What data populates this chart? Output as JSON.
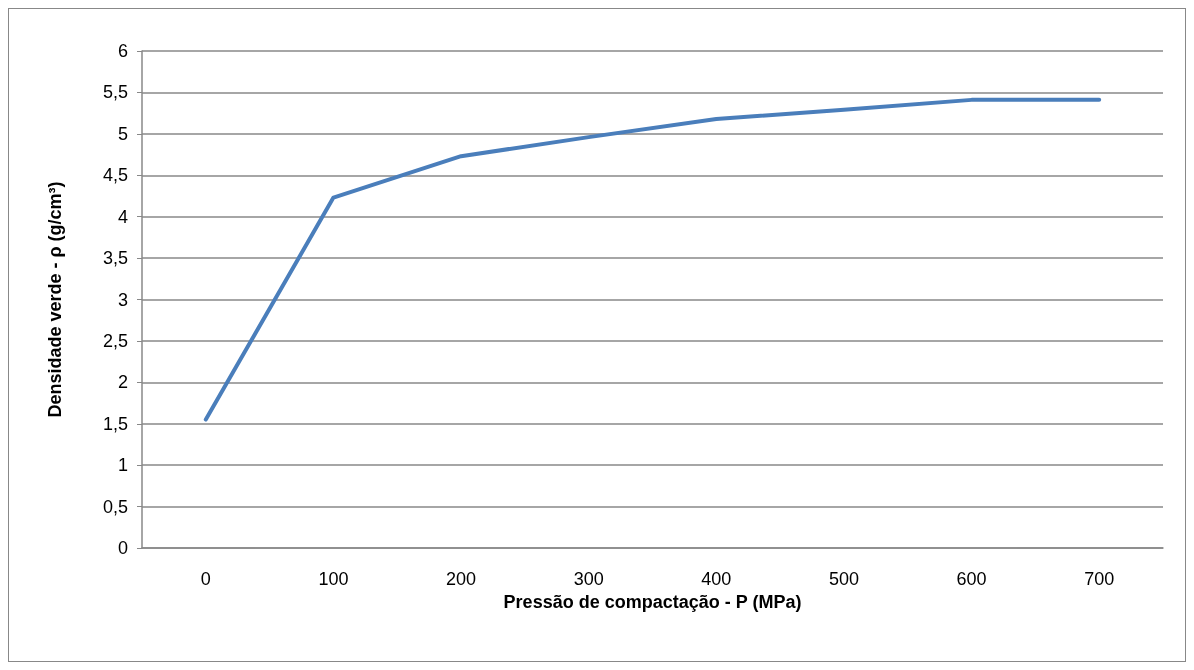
{
  "chart_data": {
    "type": "line",
    "xlabel": "Pressão de compactação - P (MPa)",
    "ylabel": "Densidade verde - ρ (g/cm³)",
    "categories": [
      "0",
      "100",
      "200",
      "300",
      "400",
      "500",
      "600",
      "700"
    ],
    "series": [
      {
        "color": "#4a7ebb",
        "values": [
          1.55,
          4.23,
          4.73,
          4.96,
          5.18,
          5.29,
          5.41,
          5.41
        ]
      }
    ],
    "ylim": [
      0,
      6
    ],
    "yticks": [
      0,
      {
        "value": 0.5,
        "label": "0,5"
      },
      1,
      {
        "value": 1.5,
        "label": "1,5"
      },
      2,
      {
        "value": 2.5,
        "label": "2,5"
      },
      3,
      {
        "value": 3.5,
        "label": "3,5"
      },
      4,
      {
        "value": 4.5,
        "label": "4,5"
      },
      5,
      {
        "value": 5.5,
        "label": "5,5"
      },
      6
    ],
    "grid": "y",
    "marker": "none",
    "line_style": "solid"
  }
}
